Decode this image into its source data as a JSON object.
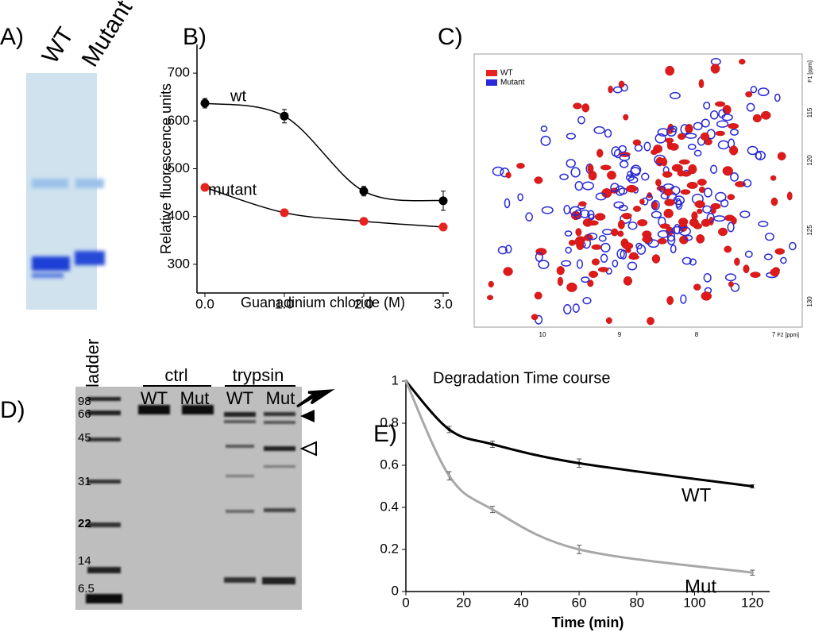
{
  "panels": {
    "a": {
      "label": "A)",
      "lanes": [
        "WT",
        "Mutant"
      ]
    },
    "c": {
      "label": "C)",
      "legend": [
        "WT",
        "Mutant"
      ],
      "xticks": [
        "10",
        "9",
        "8",
        "7"
      ],
      "xlabel": "F2 [ppm]",
      "yticks": [
        "115",
        "120",
        "125",
        "130"
      ],
      "ylabel": "F1 [ppm]"
    },
    "d": {
      "label": "D)",
      "ladder": "ladder",
      "groups": [
        "ctrl",
        "trypsin"
      ],
      "lanes": [
        "WT",
        "Mut",
        "WT",
        "Mut"
      ],
      "markers": [
        "98",
        "66",
        "45",
        "31",
        "22",
        "14",
        "6.5"
      ]
    }
  },
  "chart_data": [
    {
      "type": "line",
      "label": "B)",
      "xlabel": "Guanadinium chloride (M)",
      "ylabel": "Relative fluorescence units",
      "x": [
        0,
        1,
        2,
        3
      ],
      "xlim": [
        -0.1,
        3.07
      ],
      "xticks": [
        {
          "value": 0,
          "label": "0.0"
        },
        {
          "value": 1,
          "label": "1.0"
        },
        {
          "value": 2,
          "label": "2.0"
        },
        {
          "value": 3,
          "label": "3.0"
        }
      ],
      "ylim": [
        240,
        760
      ],
      "yticks": [
        300,
        400,
        500,
        600,
        700
      ],
      "line_color": "#000000",
      "series": [
        {
          "name": "wt",
          "color": "#000000",
          "values": [
            637,
            610,
            453,
            433
          ],
          "errors": [
            10,
            14,
            10,
            20
          ]
        },
        {
          "name": "mutant",
          "color": "#e8231f",
          "values": [
            461,
            408,
            390,
            378
          ]
        }
      ]
    },
    {
      "type": "line",
      "label": "E)",
      "title": "Degradation Time course",
      "xlabel": "Time (min)",
      "x": [
        0,
        15,
        30,
        60,
        120
      ],
      "xlim": [
        0,
        126
      ],
      "xticks": [
        0,
        20,
        40,
        60,
        80,
        100,
        120
      ],
      "ylim": [
        0,
        1
      ],
      "yticks": [
        0,
        0.2,
        0.4,
        0.6,
        0.8,
        1
      ],
      "series": [
        {
          "name": "WT",
          "color": "#000000",
          "values": [
            1,
            0.77,
            0.7,
            0.61,
            0.5
          ],
          "errors": [
            0,
            0.015,
            0.015,
            0.02,
            0.008
          ]
        },
        {
          "name": "Mut",
          "color": "#a8a8a8",
          "values": [
            1,
            0.55,
            0.39,
            0.2,
            0.09
          ],
          "errors": [
            0,
            0.02,
            0.015,
            0.02,
            0.012
          ]
        }
      ]
    }
  ]
}
